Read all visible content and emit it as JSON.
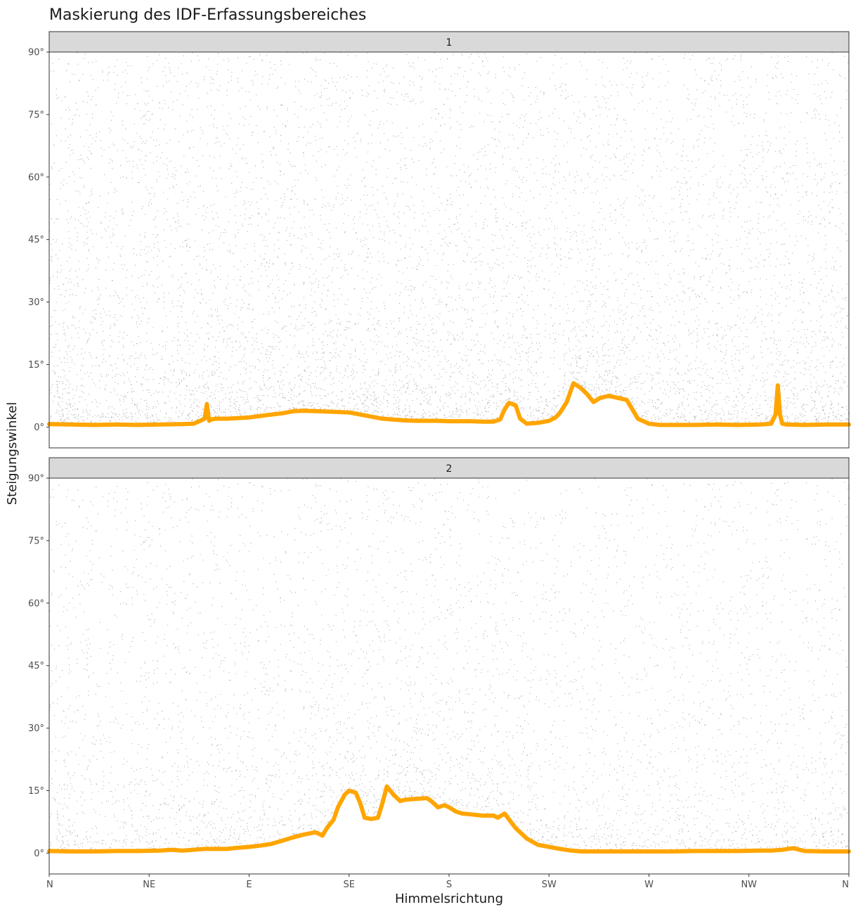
{
  "chart_data": {
    "type": "scatter",
    "title": "Maskierung des IDF-Erfassungsbereiches",
    "xlabel": "Himmelsrichtung",
    "ylabel": "Steigungswinkel",
    "x_ticks": [
      "N",
      "NE",
      "E",
      "SE",
      "S",
      "SW",
      "W",
      "NW",
      "N"
    ],
    "x_tick_values": [
      0,
      45,
      90,
      135,
      180,
      225,
      270,
      315,
      360
    ],
    "y_ticks": [
      "0°",
      "15°",
      "30°",
      "45°",
      "60°",
      "75°",
      "90°"
    ],
    "y_tick_values": [
      0,
      15,
      30,
      45,
      60,
      75,
      90
    ],
    "xlim": [
      0,
      360
    ],
    "ylim": [
      -5,
      90
    ],
    "grid": false,
    "legend": "none",
    "colors": {
      "points": "#000000",
      "mask_line": "#FFA500",
      "strip_fill": "#D9D9D9",
      "panel_border": "#333333"
    },
    "panels": [
      {
        "strip_label": "1",
        "mask_line": {
          "x": [
            0,
            10,
            20,
            30,
            40,
            50,
            60,
            65,
            68,
            70,
            71,
            72,
            73,
            75,
            80,
            90,
            100,
            105,
            110,
            115,
            120,
            125,
            130,
            135,
            140,
            145,
            150,
            155,
            160,
            165,
            170,
            175,
            180,
            185,
            190,
            195,
            200,
            203,
            205,
            207,
            210,
            212,
            215,
            220,
            225,
            228,
            230,
            233,
            236,
            239,
            242,
            245,
            248,
            252,
            256,
            260,
            265,
            270,
            275,
            280,
            290,
            300,
            310,
            320,
            325,
            327,
            328,
            329,
            330,
            332,
            340,
            350,
            360
          ],
          "y": [
            0.7,
            0.6,
            0.5,
            0.6,
            0.5,
            0.6,
            0.7,
            0.8,
            1.5,
            2.0,
            5.5,
            1.5,
            1.8,
            2.0,
            2.0,
            2.3,
            3.0,
            3.3,
            3.8,
            3.9,
            3.8,
            3.7,
            3.6,
            3.5,
            3.0,
            2.5,
            2.0,
            1.8,
            1.6,
            1.5,
            1.5,
            1.5,
            1.4,
            1.4,
            1.4,
            1.3,
            1.3,
            1.8,
            4.2,
            5.8,
            5.2,
            2.0,
            0.8,
            1.0,
            1.5,
            2.3,
            3.5,
            6.0,
            10.5,
            9.5,
            8.0,
            6.0,
            7.0,
            7.5,
            7.0,
            6.5,
            2.0,
            0.8,
            0.5,
            0.5,
            0.5,
            0.6,
            0.5,
            0.6,
            0.8,
            3.0,
            10.0,
            3.0,
            0.8,
            0.6,
            0.5,
            0.6,
            0.6
          ]
        }
      },
      {
        "strip_label": "2",
        "mask_line": {
          "x": [
            0,
            10,
            20,
            30,
            40,
            50,
            55,
            60,
            65,
            70,
            80,
            85,
            90,
            95,
            100,
            105,
            110,
            115,
            120,
            123,
            125,
            128,
            130,
            133,
            135,
            138,
            140,
            142,
            145,
            148,
            150,
            152,
            155,
            158,
            160,
            165,
            170,
            172,
            175,
            178,
            180,
            183,
            186,
            190,
            195,
            200,
            202,
            205,
            210,
            215,
            220,
            225,
            230,
            235,
            240,
            250,
            260,
            270,
            280,
            290,
            300,
            310,
            320,
            325,
            330,
            335,
            340,
            350,
            360
          ],
          "y": [
            0.5,
            0.4,
            0.4,
            0.5,
            0.5,
            0.6,
            0.8,
            0.6,
            0.8,
            1.0,
            1.0,
            1.3,
            1.5,
            1.8,
            2.2,
            3.0,
            3.8,
            4.5,
            5.0,
            4.2,
            6.0,
            8.0,
            11.0,
            14.0,
            15.0,
            14.5,
            12.0,
            8.5,
            8.2,
            8.5,
            12.0,
            16.0,
            14.0,
            12.5,
            12.8,
            13.0,
            13.2,
            12.5,
            11.0,
            11.5,
            11.0,
            10.0,
            9.5,
            9.3,
            9.0,
            9.0,
            8.5,
            9.5,
            6.0,
            3.5,
            2.0,
            1.5,
            1.0,
            0.6,
            0.4,
            0.4,
            0.4,
            0.4,
            0.4,
            0.5,
            0.5,
            0.5,
            0.6,
            0.6,
            0.8,
            1.2,
            0.5,
            0.4,
            0.4
          ]
        }
      }
    ]
  }
}
